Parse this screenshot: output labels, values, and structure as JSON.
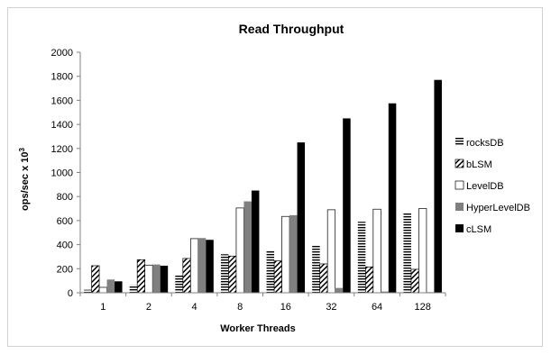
{
  "chart_data": {
    "type": "bar",
    "title": "Read Throughput",
    "xlabel": "Worker Threads",
    "ylabel": "ops/sec x 10",
    "ylabel_superscript": "3",
    "ylim": [
      0,
      2000
    ],
    "yticks": [
      0,
      200,
      400,
      600,
      800,
      1000,
      1200,
      1400,
      1600,
      1800,
      2000
    ],
    "categories": [
      "1",
      "2",
      "4",
      "8",
      "16",
      "32",
      "64",
      "128"
    ],
    "grid": false,
    "legend_position": "right",
    "series": [
      {
        "name": "rocksDB",
        "pattern": "hlines",
        "values": [
          25,
          65,
          150,
          320,
          355,
          390,
          590,
          660
        ]
      },
      {
        "name": "bLSM",
        "pattern": "diag",
        "values": [
          225,
          275,
          285,
          305,
          265,
          240,
          215,
          195
        ]
      },
      {
        "name": "LevelDB",
        "pattern": "white",
        "values": [
          45,
          230,
          450,
          705,
          635,
          690,
          695,
          700
        ]
      },
      {
        "name": "HyperLevelDB",
        "pattern": "gray",
        "values": [
          110,
          235,
          455,
          760,
          645,
          40,
          10,
          5
        ]
      },
      {
        "name": "cLSM",
        "pattern": "black",
        "values": [
          95,
          225,
          440,
          850,
          1250,
          1450,
          1575,
          1770
        ]
      }
    ]
  }
}
